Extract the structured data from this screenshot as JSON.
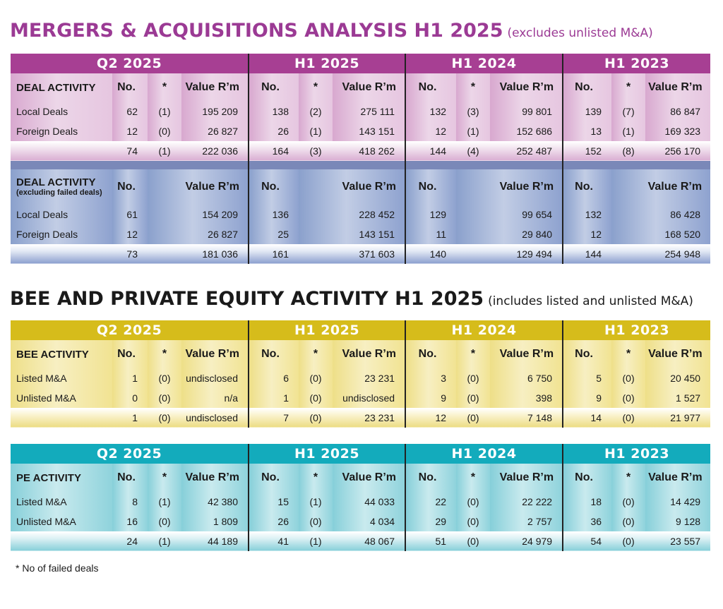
{
  "title1": {
    "main": "MERGERS & ACQUISITIONS ANALYSIS H1 2025",
    "sub": "(excludes unlisted M&A)"
  },
  "title2": {
    "main": "BEE AND PRIVATE EQUITY ACTIVITY H1 2025",
    "sub": "(includes listed and unlisted M&A)"
  },
  "periods": [
    "Q2 2025",
    "H1 2025",
    "H1 2024",
    "H1 2023"
  ],
  "cols": {
    "no": "No.",
    "star": "*",
    "value": "Value R’m"
  },
  "ma": {
    "section1_label": "DEAL ACTIVITY",
    "section1_rows": [
      {
        "label": "Local Deals",
        "cells": [
          [
            "62",
            "(1)",
            "195 209"
          ],
          [
            "138",
            "(2)",
            "275 111"
          ],
          [
            "132",
            "(3)",
            "99 801"
          ],
          [
            "139",
            "(7)",
            "86 847"
          ]
        ]
      },
      {
        "label": "Foreign Deals",
        "cells": [
          [
            "12",
            "(0)",
            "26 827"
          ],
          [
            "26",
            "(1)",
            "143 151"
          ],
          [
            "12",
            "(1)",
            "152 686"
          ],
          [
            "13",
            "(1)",
            "169 323"
          ]
        ]
      }
    ],
    "section1_total": [
      [
        "74",
        "(1)",
        "222 036"
      ],
      [
        "164",
        "(3)",
        "418 262"
      ],
      [
        "144",
        "(4)",
        "252 487"
      ],
      [
        "152",
        "(8)",
        "256 170"
      ]
    ],
    "section2_label": "DEAL ACTIVITY",
    "section2_sublabel": "(excluding failed deals)",
    "section2_rows": [
      {
        "label": "Local Deals",
        "cells": [
          [
            "61",
            "154 209"
          ],
          [
            "136",
            "228 452"
          ],
          [
            "129",
            "99 654"
          ],
          [
            "132",
            "86 428"
          ]
        ]
      },
      {
        "label": "Foreign Deals",
        "cells": [
          [
            "12",
            "26 827"
          ],
          [
            "25",
            "143 151"
          ],
          [
            "11",
            "29 840"
          ],
          [
            "12",
            "168 520"
          ]
        ]
      }
    ],
    "section2_total": [
      [
        "73",
        "181 036"
      ],
      [
        "161",
        "371 603"
      ],
      [
        "140",
        "129 494"
      ],
      [
        "144",
        "254 948"
      ]
    ]
  },
  "bee": {
    "label": "BEE ACTIVITY",
    "rows": [
      {
        "label": "Listed M&A",
        "cells": [
          [
            "1",
            "(0)",
            "undisclosed"
          ],
          [
            "6",
            "(0)",
            "23 231"
          ],
          [
            "3",
            "(0)",
            "6 750"
          ],
          [
            "5",
            "(0)",
            "20 450"
          ]
        ]
      },
      {
        "label": "Unlisted M&A",
        "cells": [
          [
            "0",
            "(0)",
            "n/a"
          ],
          [
            "1",
            "(0)",
            "undisclosed"
          ],
          [
            "9",
            "(0)",
            "398"
          ],
          [
            "9",
            "(0)",
            "1 527"
          ]
        ]
      }
    ],
    "total": [
      [
        "1",
        "(0)",
        "undisclosed"
      ],
      [
        "7",
        "(0)",
        "23 231"
      ],
      [
        "12",
        "(0)",
        "7 148"
      ],
      [
        "14",
        "(0)",
        "21 977"
      ]
    ]
  },
  "pe": {
    "label": "PE ACTIVITY",
    "rows": [
      {
        "label": "Listed M&A",
        "cells": [
          [
            "8",
            "(1)",
            "42 380"
          ],
          [
            "15",
            "(1)",
            "44 033"
          ],
          [
            "22",
            "(0)",
            "22 222"
          ],
          [
            "18",
            "(0)",
            "14 429"
          ]
        ]
      },
      {
        "label": "Unlisted M&A",
        "cells": [
          [
            "16",
            "(0)",
            "1 809"
          ],
          [
            "26",
            "(0)",
            "4 034"
          ],
          [
            "29",
            "(0)",
            "2 757"
          ],
          [
            "36",
            "(0)",
            "9 128"
          ]
        ]
      }
    ],
    "total": [
      [
        "24",
        "(1)",
        "44 189"
      ],
      [
        "41",
        "(1)",
        "48 067"
      ],
      [
        "51",
        "(0)",
        "24 979"
      ],
      [
        "54",
        "(0)",
        "23 557"
      ]
    ]
  },
  "footnote": "* No of failed deals",
  "colors": {
    "ma_accent": "#a73f93",
    "ma_section2": "#8aa0cc",
    "bee_accent": "#d6bc1b",
    "pe_accent": "#13abbc"
  }
}
